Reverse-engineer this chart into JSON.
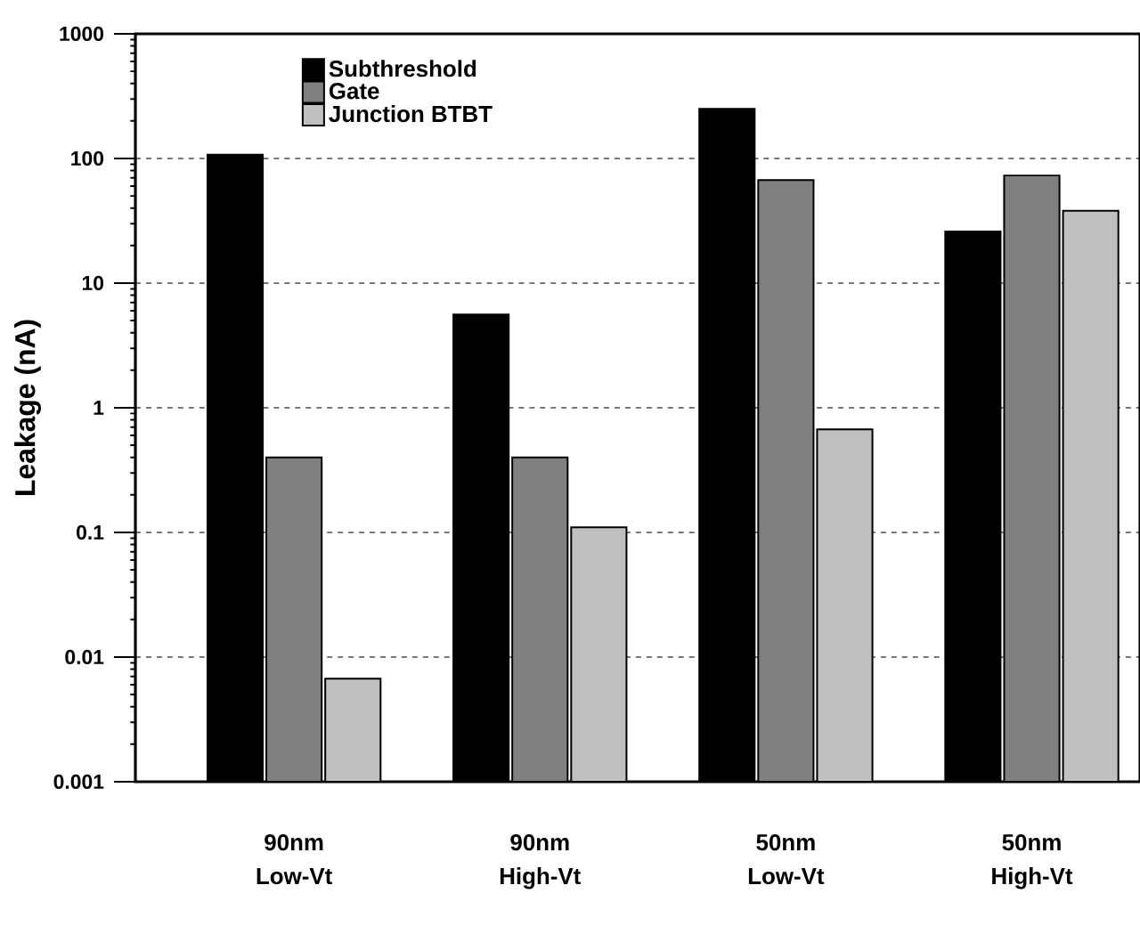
{
  "chart_data": {
    "type": "bar",
    "ylabel": "Leakage (nA)",
    "categories": [
      "90nm Low-Vt",
      "90nm High-Vt",
      "50nm Low-Vt",
      "50nm High-Vt"
    ],
    "series": [
      {
        "name": "Subthreshold",
        "color": "#000000",
        "values": [
          107,
          5.6,
          250,
          26
        ]
      },
      {
        "name": "Gate",
        "color": "#808080",
        "values": [
          0.4,
          0.4,
          67,
          73
        ]
      },
      {
        "name": "Junction BTBT",
        "color": "#c0c0c0",
        "values": [
          0.0067,
          0.11,
          0.67,
          38
        ]
      }
    ],
    "log": "y",
    "ylim": [
      0.001,
      1000
    ],
    "yticks": [
      0.001,
      0.01,
      0.1,
      1,
      10,
      100,
      1000
    ],
    "grid": "y",
    "legend": "top left"
  }
}
